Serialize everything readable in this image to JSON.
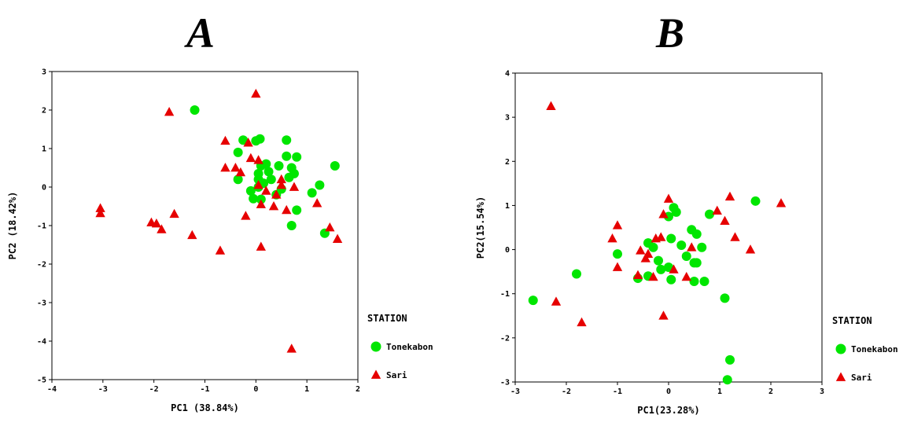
{
  "chart_data": [
    {
      "type": "scatter",
      "title": "A",
      "xlabel": "PC1 (38.84%)",
      "ylabel": "PC2 (18.42%)",
      "xlim": [
        -4,
        2
      ],
      "ylim": [
        -5,
        3
      ],
      "xticks": [
        -4,
        -3,
        -2,
        -1,
        0,
        1,
        2
      ],
      "yticks": [
        -5,
        -4,
        -3,
        -2,
        -1,
        0,
        1,
        2,
        3
      ],
      "grid": false,
      "legend": {
        "title": "STATION",
        "placement": "right"
      },
      "series": [
        {
          "name": "Tonekabon",
          "marker": "circle",
          "color": "#00e600",
          "points": [
            [
              -1.2,
              2.0
            ],
            [
              -0.25,
              1.22
            ],
            [
              0.0,
              1.2
            ],
            [
              0.08,
              1.25
            ],
            [
              0.6,
              1.22
            ],
            [
              -0.35,
              0.9
            ],
            [
              0.6,
              0.8
            ],
            [
              0.8,
              0.78
            ],
            [
              0.1,
              0.55
            ],
            [
              0.2,
              0.6
            ],
            [
              0.45,
              0.55
            ],
            [
              0.7,
              0.5
            ],
            [
              1.55,
              0.55
            ],
            [
              0.05,
              0.35
            ],
            [
              0.25,
              0.4
            ],
            [
              0.75,
              0.35
            ],
            [
              -0.35,
              0.2
            ],
            [
              0.05,
              0.2
            ],
            [
              0.3,
              0.2
            ],
            [
              0.65,
              0.25
            ],
            [
              0.15,
              0.1
            ],
            [
              1.25,
              0.05
            ],
            [
              0.05,
              0.0
            ],
            [
              -0.1,
              -0.1
            ],
            [
              0.5,
              -0.05
            ],
            [
              1.1,
              -0.15
            ],
            [
              -0.05,
              -0.3
            ],
            [
              0.1,
              -0.32
            ],
            [
              0.4,
              -0.2
            ],
            [
              0.8,
              -0.6
            ],
            [
              0.7,
              -1.0
            ],
            [
              1.35,
              -1.2
            ]
          ]
        },
        {
          "name": "Sari",
          "marker": "triangle",
          "color": "#e60000",
          "points": [
            [
              0.0,
              2.42
            ],
            [
              -1.7,
              1.95
            ],
            [
              -0.6,
              1.2
            ],
            [
              -0.15,
              1.15
            ],
            [
              0.05,
              0.7
            ],
            [
              -0.1,
              0.75
            ],
            [
              -0.6,
              0.5
            ],
            [
              -0.4,
              0.5
            ],
            [
              -0.3,
              0.38
            ],
            [
              0.5,
              0.2
            ],
            [
              0.5,
              0.05
            ],
            [
              0.05,
              0.05
            ],
            [
              0.2,
              -0.1
            ],
            [
              0.75,
              0.0
            ],
            [
              0.4,
              -0.2
            ],
            [
              0.1,
              -0.45
            ],
            [
              0.35,
              -0.5
            ],
            [
              0.6,
              -0.6
            ],
            [
              -0.2,
              -0.75
            ],
            [
              1.2,
              -0.42
            ],
            [
              -3.05,
              -0.55
            ],
            [
              -3.05,
              -0.68
            ],
            [
              -1.6,
              -0.7
            ],
            [
              -2.05,
              -0.92
            ],
            [
              -1.95,
              -0.95
            ],
            [
              -1.85,
              -1.1
            ],
            [
              -1.25,
              -1.25
            ],
            [
              1.45,
              -1.05
            ],
            [
              1.6,
              -1.35
            ],
            [
              0.1,
              -1.55
            ],
            [
              -0.7,
              -1.65
            ],
            [
              0.7,
              -4.2
            ]
          ]
        }
      ]
    },
    {
      "type": "scatter",
      "title": "B",
      "xlabel": "PC1(23.28%)",
      "ylabel": "PC2(15.54%)",
      "xlim": [
        -3,
        3
      ],
      "ylim": [
        -3,
        4
      ],
      "xticks": [
        -3,
        -2,
        -1,
        0,
        1,
        2,
        3
      ],
      "yticks": [
        -3,
        -2,
        -1,
        0,
        1,
        2,
        3,
        4
      ],
      "grid": false,
      "legend": {
        "title": "STATION",
        "placement": "right"
      },
      "series": [
        {
          "name": "Tonekabon",
          "marker": "circle",
          "color": "#00e600",
          "points": [
            [
              1.7,
              1.1
            ],
            [
              0.1,
              0.95
            ],
            [
              0.15,
              0.85
            ],
            [
              0.8,
              0.8
            ],
            [
              0.0,
              0.75
            ],
            [
              0.45,
              0.45
            ],
            [
              0.55,
              0.35
            ],
            [
              -0.4,
              0.15
            ],
            [
              -0.3,
              0.05
            ],
            [
              0.05,
              0.25
            ],
            [
              0.25,
              0.1
            ],
            [
              0.65,
              0.05
            ],
            [
              -1.0,
              -0.1
            ],
            [
              0.35,
              -0.15
            ],
            [
              -0.2,
              -0.25
            ],
            [
              0.5,
              -0.3
            ],
            [
              0.0,
              -0.4
            ],
            [
              -0.15,
              -0.45
            ],
            [
              0.55,
              -0.3
            ],
            [
              -1.8,
              -0.55
            ],
            [
              -0.4,
              -0.6
            ],
            [
              -0.6,
              -0.65
            ],
            [
              0.05,
              -0.68
            ],
            [
              0.5,
              -0.72
            ],
            [
              0.7,
              -0.72
            ],
            [
              1.1,
              -1.1
            ],
            [
              -2.65,
              -1.15
            ],
            [
              1.2,
              -2.5
            ],
            [
              1.15,
              -2.95
            ]
          ]
        },
        {
          "name": "Sari",
          "marker": "triangle",
          "color": "#e60000",
          "points": [
            [
              -2.3,
              3.25
            ],
            [
              1.2,
              1.2
            ],
            [
              0.0,
              1.15
            ],
            [
              2.2,
              1.05
            ],
            [
              0.95,
              0.88
            ],
            [
              -0.1,
              0.8
            ],
            [
              1.1,
              0.65
            ],
            [
              -1.0,
              0.55
            ],
            [
              -1.1,
              0.25
            ],
            [
              -0.15,
              0.28
            ],
            [
              1.3,
              0.28
            ],
            [
              -0.25,
              0.25
            ],
            [
              -0.55,
              -0.02
            ],
            [
              0.45,
              0.05
            ],
            [
              1.6,
              0.0
            ],
            [
              -0.4,
              -0.1
            ],
            [
              -0.45,
              -0.2
            ],
            [
              -1.0,
              -0.4
            ],
            [
              0.1,
              -0.45
            ],
            [
              -0.6,
              -0.58
            ],
            [
              -0.3,
              -0.62
            ],
            [
              0.35,
              -0.62
            ],
            [
              -2.2,
              -1.18
            ],
            [
              -1.7,
              -1.65
            ],
            [
              -0.1,
              -1.5
            ]
          ]
        }
      ]
    }
  ]
}
